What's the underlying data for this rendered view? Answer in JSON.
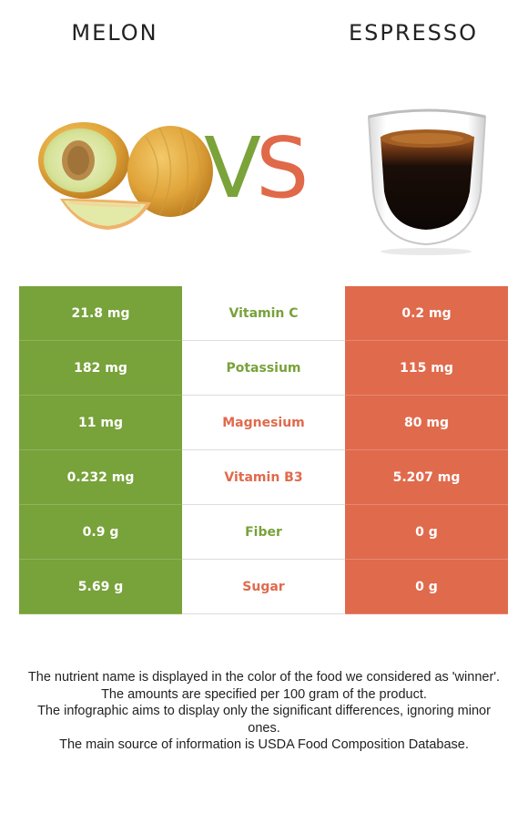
{
  "left_food": {
    "name": "MELON",
    "color": "#78a23a"
  },
  "right_food": {
    "name": "ESPRESSO",
    "color": "#e06a4c"
  },
  "vs": {
    "v": "V",
    "s": "S"
  },
  "rows": [
    {
      "left": "21.8 mg",
      "nutrient": "Vitamin C",
      "right": "0.2 mg",
      "winner_color": "#78a23a"
    },
    {
      "left": "182 mg",
      "nutrient": "Potassium",
      "right": "115 mg",
      "winner_color": "#78a23a"
    },
    {
      "left": "11 mg",
      "nutrient": "Magnesium",
      "right": "80 mg",
      "winner_color": "#e06a4c"
    },
    {
      "left": "0.232 mg",
      "nutrient": "Vitamin B3",
      "right": "5.207 mg",
      "winner_color": "#e06a4c"
    },
    {
      "left": "0.9 g",
      "nutrient": "Fiber",
      "right": "0 g",
      "winner_color": "#78a23a"
    },
    {
      "left": "5.69 g",
      "nutrient": "Sugar",
      "right": "0 g",
      "winner_color": "#e06a4c"
    }
  ],
  "footnotes": [
    "The nutrient name is displayed in the color of the food we considered as 'winner'.",
    "The amounts are specified per 100 gram of the product.",
    "The infographic aims to display only the significant differences, ignoring minor ones.",
    "The main source of information is USDA Food Composition Database."
  ]
}
